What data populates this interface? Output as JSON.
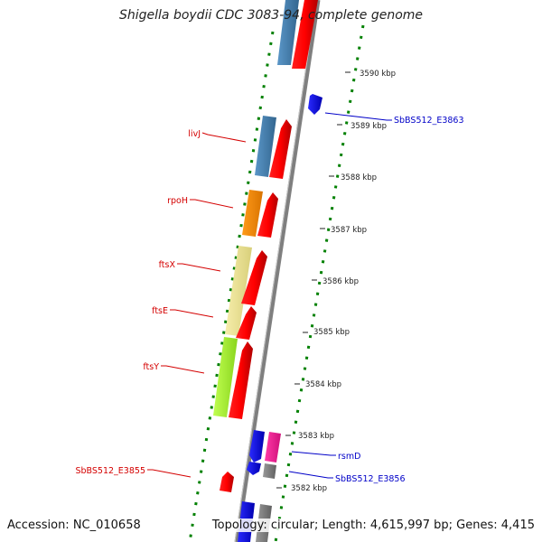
{
  "title": "Shigella boydii CDC 3083-94, complete genome",
  "footer": {
    "accession": "Accession: NC_010658",
    "summary": "Topology: circular; Length: 4,615,997 bp; Genes: 4,415"
  },
  "scale_labels": [
    "3590 kbp",
    "3589 kbp",
    "3588 kbp",
    "3587 kbp",
    "3586 kbp",
    "3585 kbp",
    "3584 kbp",
    "3583 kbp",
    "3582 kbp"
  ],
  "gene_labels": {
    "left": [
      "livJ",
      "rpoH",
      "ftsX",
      "ftsE",
      "ftsY",
      "SbBS512_E3855"
    ],
    "right": [
      "SbBS512_E3863",
      "rsmD",
      "SbBS512_E3856"
    ]
  },
  "colors": {
    "backbone": "#7f7f7f",
    "cds_red": "#ff0000",
    "steelblue": "#4682b4",
    "orange": "#ff8c00",
    "khaki": "#f0e68c",
    "greenyellow": "#adff2f",
    "blue": "#0000ff",
    "pink": "#ff1493",
    "gray": "#808080",
    "ticks_green": "#008000",
    "label_red": "#d40000",
    "label_blue": "#0000c8"
  }
}
